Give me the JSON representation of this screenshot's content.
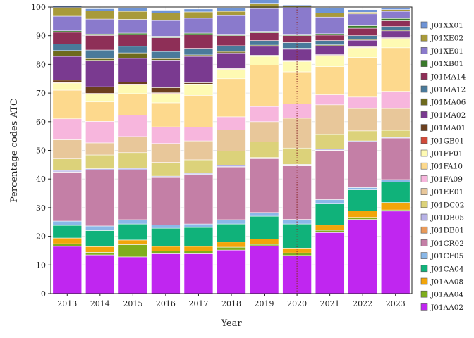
{
  "chart_data": {
    "type": "bar",
    "stacked": true,
    "xlabel": "Year",
    "ylabel": "Percentage codes ATC",
    "ylim": [
      0,
      100
    ],
    "yticks": [
      0,
      10,
      20,
      30,
      40,
      50,
      60,
      70,
      80,
      90,
      100
    ],
    "categories": [
      "2013",
      "2014",
      "2015",
      "2016",
      "2017",
      "2018",
      "2019",
      "2020",
      "2021",
      "2022",
      "2023"
    ],
    "reference_line": {
      "category": "2020",
      "style": "dotted",
      "color": "#8b2a2a"
    },
    "grid": true,
    "legend_position": "right",
    "series": [
      {
        "name": "J01AA02",
        "color": "#c026f0",
        "values": [
          16.5,
          13.5,
          12.8,
          13.9,
          13.9,
          15.2,
          16.7,
          13.3,
          21.3,
          25.9,
          28.8
        ]
      },
      {
        "name": "J01AA04",
        "color": "#7fae1c",
        "values": [
          0.9,
          0.9,
          4.3,
          1.0,
          1.0,
          1.0,
          0.5,
          0.9,
          0.8,
          0.7,
          0.4
        ]
      },
      {
        "name": "J01AA08",
        "color": "#f2a50a",
        "values": [
          2.0,
          2.0,
          1.6,
          1.6,
          1.6,
          1.8,
          1.8,
          1.7,
          1.8,
          2.3,
          2.6
        ]
      },
      {
        "name": "J01CA04",
        "color": "#10b27a",
        "values": [
          4.4,
          5.6,
          5.6,
          6.3,
          6.6,
          6.3,
          8.0,
          8.4,
          7.6,
          7.3,
          7.1
        ]
      },
      {
        "name": "J01CF05",
        "color": "#8ab8e8",
        "values": [
          1.5,
          1.6,
          1.5,
          1.2,
          1.2,
          1.5,
          1.3,
          1.6,
          1.3,
          0.8,
          0.9
        ]
      },
      {
        "name": "J01CR02",
        "color": "#c47fa6",
        "values": [
          17.1,
          19.5,
          17.3,
          16.5,
          17.2,
          18.4,
          18.8,
          18.7,
          17.2,
          15.9,
          14.5
        ]
      },
      {
        "name": "J01DB01",
        "color": "#e89a5a",
        "values": [
          0.1,
          0.1,
          0.1,
          0.1,
          0.1,
          0.1,
          0.1,
          0.1,
          0.1,
          0.1,
          0.1
        ]
      },
      {
        "name": "J01DB05",
        "color": "#b7b2e6",
        "values": [
          0.5,
          0.4,
          0.5,
          0.4,
          0.4,
          0.5,
          0.3,
          0.4,
          0.4,
          0.3,
          0.3
        ]
      },
      {
        "name": "J01DC02",
        "color": "#dcd27a",
        "values": [
          4.0,
          4.8,
          5.5,
          4.8,
          4.7,
          5.0,
          5.4,
          5.7,
          5.0,
          3.5,
          2.3
        ]
      },
      {
        "name": "J01EE01",
        "color": "#e8c79a",
        "values": [
          6.7,
          4.2,
          5.6,
          6.6,
          6.6,
          7.3,
          7.1,
          10.4,
          10.4,
          7.8,
          7.6
        ]
      },
      {
        "name": "J01FA09",
        "color": "#f7b6dd",
        "values": [
          7.3,
          7.5,
          7.5,
          5.8,
          4.8,
          4.6,
          5.3,
          5.0,
          3.5,
          4.0,
          6.0
        ]
      },
      {
        "name": "J01FA10",
        "color": "#fdd98d",
        "values": [
          10.0,
          6.8,
          7.5,
          8.4,
          11.1,
          13.3,
          14.4,
          11.2,
          9.8,
          13.8,
          15.2
        ]
      },
      {
        "name": "J01FF01",
        "color": "#fefab3",
        "values": [
          2.5,
          2.8,
          3.0,
          3.3,
          3.7,
          3.2,
          3.1,
          3.6,
          3.8,
          3.4,
          3.1
        ]
      },
      {
        "name": "J01GB01",
        "color": "#d14a3a",
        "values": [
          0.2,
          0.2,
          0.2,
          0.2,
          0.2,
          0.2,
          0.2,
          0.2,
          0.2,
          0.2,
          0.2
        ]
      },
      {
        "name": "J01MA01",
        "color": "#6b3f1e",
        "values": [
          0.8,
          2.3,
          0.8,
          1.8,
          0.5,
          0.2,
          0.2,
          0.2,
          0.2,
          0.2,
          0.2
        ]
      },
      {
        "name": "J01MA02",
        "color": "#7a3a90",
        "values": [
          8.3,
          9.2,
          8.3,
          9.6,
          9.2,
          5.4,
          3.1,
          3.9,
          3.1,
          2.2,
          2.4
        ]
      },
      {
        "name": "J01MA06",
        "color": "#6e6a1c",
        "values": [
          2.0,
          0.6,
          1.9,
          0.5,
          0.5,
          0.5,
          0.4,
          0.3,
          0.3,
          0.3,
          0.3
        ]
      },
      {
        "name": "J01MA12",
        "color": "#4a7a9a",
        "values": [
          2.3,
          3.0,
          2.3,
          2.5,
          2.3,
          2.0,
          1.6,
          2.0,
          1.5,
          1.3,
          1.2
        ]
      },
      {
        "name": "J01MA14",
        "color": "#8e2f57",
        "values": [
          4.1,
          5.1,
          4.1,
          4.8,
          4.8,
          3.5,
          2.7,
          2.4,
          1.9,
          2.6,
          2.0
        ]
      },
      {
        "name": "J01XB01",
        "color": "#3a7a2a",
        "values": [
          0.5,
          0.5,
          0.5,
          0.5,
          0.5,
          0.5,
          0.5,
          0.5,
          0.5,
          0.9,
          0.8
        ]
      },
      {
        "name": "J01XE01",
        "color": "#8a7acc",
        "values": [
          5.1,
          5.2,
          4.8,
          5.5,
          5.2,
          6.5,
          8.0,
          9.4,
          5.8,
          4.1,
          2.5
        ]
      },
      {
        "name": "J01XE02",
        "color": "#a89a3a",
        "values": [
          3.0,
          2.8,
          2.8,
          2.6,
          2.2,
          1.5,
          1.8,
          0.5,
          1.4,
          0.6,
          0.6
        ]
      },
      {
        "name": "J01XX01",
        "color": "#6f94d6",
        "values": [
          0.7,
          0.8,
          1.2,
          1.0,
          1.0,
          1.2,
          1.3,
          0.3,
          1.7,
          0.9,
          0.7
        ]
      }
    ]
  }
}
